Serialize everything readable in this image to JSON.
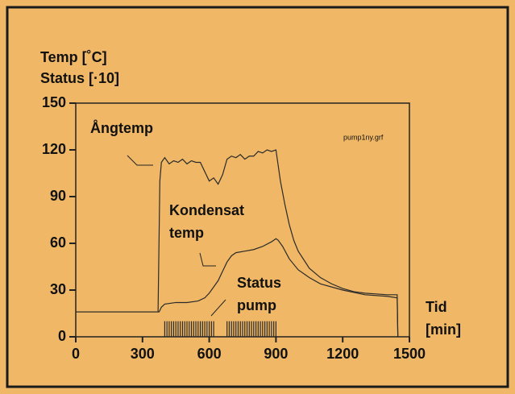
{
  "chart_data": {
    "type": "line",
    "y_label": [
      "Temp [˚C]",
      "Status [·10]"
    ],
    "x_label": [
      "Tid",
      "[min]"
    ],
    "file_label": "pump1ny.grf",
    "xlim": [
      0,
      1500
    ],
    "xticks": [
      0,
      300,
      600,
      900,
      1200,
      1500
    ],
    "ylim": [
      0,
      150
    ],
    "yticks": [
      0,
      30,
      60,
      90,
      120,
      150
    ],
    "line_color": "#2a2a2a",
    "series": [
      {
        "label": [
          "Ångtemp"
        ],
        "kind": "line",
        "x": [
          0,
          370,
          378,
          385,
          400,
          420,
          440,
          460,
          480,
          500,
          520,
          540,
          560,
          580,
          600,
          620,
          640,
          660,
          680,
          700,
          720,
          740,
          760,
          780,
          800,
          820,
          840,
          860,
          880,
          900,
          910,
          920,
          940,
          960,
          980,
          1000,
          1050,
          1100,
          1150,
          1200,
          1250,
          1300,
          1350,
          1400,
          1445,
          1448
        ],
        "values": [
          16,
          16,
          100,
          112,
          115,
          111,
          113,
          112,
          114,
          111,
          113,
          112,
          112,
          106,
          100,
          102,
          98,
          104,
          114,
          116,
          115,
          117,
          114,
          116,
          116,
          119,
          118,
          120,
          119,
          120,
          110,
          100,
          85,
          72,
          62,
          55,
          44,
          38,
          34,
          31,
          29,
          28,
          27.5,
          27,
          27,
          0
        ]
      },
      {
        "label": [
          "Kondensat",
          "temp"
        ],
        "kind": "line",
        "x": [
          0,
          375,
          385,
          400,
          450,
          500,
          550,
          580,
          600,
          620,
          640,
          660,
          680,
          700,
          720,
          760,
          800,
          840,
          880,
          900,
          910,
          930,
          960,
          1000,
          1050,
          1100,
          1200,
          1300,
          1400,
          1445,
          1448
        ],
        "values": [
          16,
          16,
          19,
          21,
          22,
          22,
          23,
          25,
          28,
          32,
          36,
          42,
          48,
          52,
          54,
          55,
          56,
          58,
          61,
          63,
          62,
          58,
          50,
          43,
          38,
          34,
          30,
          27,
          26,
          25,
          0
        ]
      },
      {
        "label": [
          "Status",
          "pump"
        ],
        "kind": "pulse",
        "x": [
          400,
          410,
          420,
          430,
          440,
          450,
          460,
          470,
          480,
          490,
          500,
          510,
          520,
          530,
          540,
          550,
          560,
          570,
          580,
          590,
          600,
          610,
          620,
          680,
          690,
          700,
          710,
          720,
          730,
          740,
          750,
          760,
          770,
          780,
          790,
          800,
          810,
          820,
          830,
          840,
          850,
          860,
          870,
          880,
          890,
          900
        ],
        "values": [
          10,
          10,
          10,
          10,
          10,
          10,
          10,
          10,
          10,
          10,
          10,
          10,
          10,
          10,
          10,
          10,
          10,
          10,
          10,
          10,
          10,
          10,
          10,
          10,
          10,
          10,
          10,
          10,
          10,
          10,
          10,
          10,
          10,
          10,
          10,
          10,
          10,
          10,
          10,
          10,
          10,
          10,
          10,
          10,
          10,
          10
        ]
      }
    ]
  }
}
